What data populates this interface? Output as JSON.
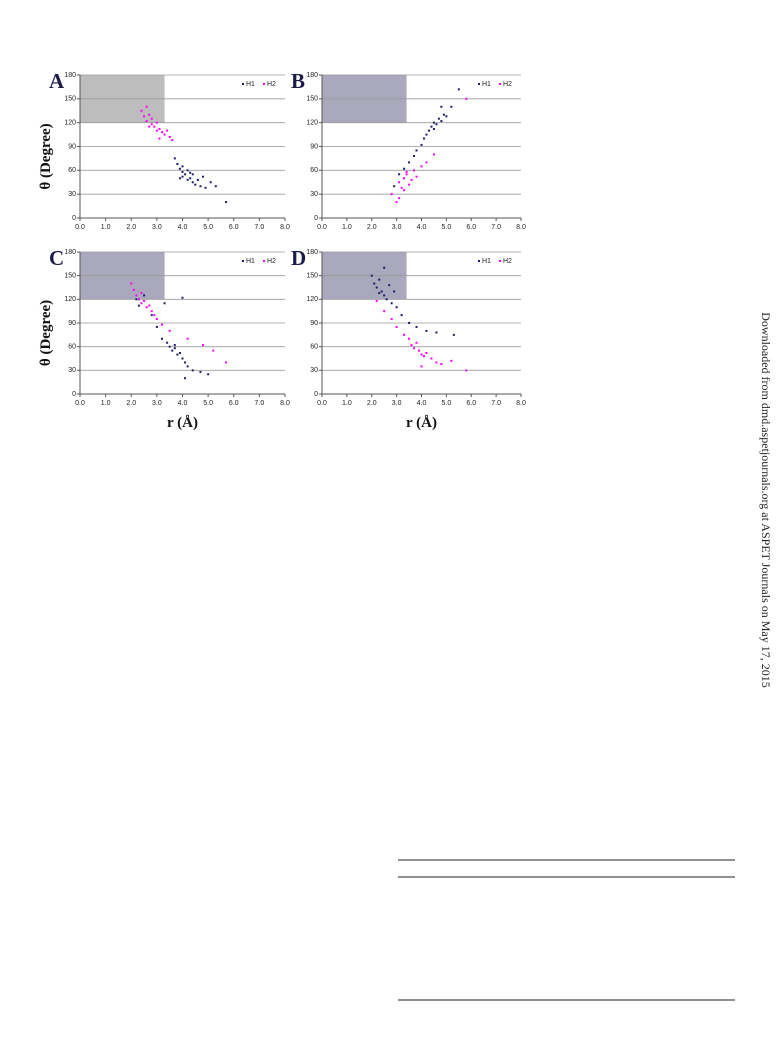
{
  "side_note": "Downloaded from dmd.aspetjournals.org at ASPET Journals on May 17, 2015",
  "chart_data": [
    {
      "type": "scatter",
      "panel": "A",
      "region_x": [
        0,
        3.3
      ],
      "region_y": [
        120,
        180
      ],
      "region_color": "#bdbdbd",
      "grid": true,
      "xlim": [
        0,
        8
      ],
      "ylim": [
        0,
        180
      ],
      "xticks": [
        {
          "value": 0,
          "label": "0.0"
        },
        {
          "value": 1,
          "label": "1.0"
        },
        {
          "value": 2,
          "label": "2.0"
        },
        {
          "value": 3,
          "label": "3.0"
        },
        {
          "value": 4,
          "label": "4.0"
        },
        {
          "value": 5,
          "label": "5.0"
        },
        {
          "value": 6,
          "label": "6.0"
        },
        {
          "value": 7,
          "label": "7.0"
        },
        {
          "value": 8,
          "label": "8.0"
        }
      ],
      "yticks": [
        0,
        30,
        60,
        90,
        120,
        150,
        180
      ],
      "y_label": "θ (Degree)",
      "series": [
        {
          "name": "H1",
          "color": "#1c1c6b",
          "x": [
            3.7,
            3.8,
            3.9,
            4.0,
            4.0,
            4.1,
            4.2,
            4.2,
            4.3,
            4.4,
            4.4,
            4.5,
            4.6,
            4.7,
            4.8,
            4.9,
            5.1,
            5.3,
            5.7,
            4.0,
            3.9,
            4.3
          ],
          "values": [
            75,
            68,
            62,
            58,
            52,
            55,
            48,
            60,
            50,
            45,
            55,
            42,
            48,
            40,
            52,
            38,
            45,
            40,
            20,
            65,
            50,
            57
          ]
        },
        {
          "name": "H2",
          "color": "#ff00ff",
          "x": [
            2.4,
            2.5,
            2.6,
            2.7,
            2.8,
            2.8,
            2.9,
            3.0,
            3.0,
            3.1,
            3.2,
            3.3,
            3.4,
            3.5,
            2.6,
            2.7,
            3.1,
            3.6
          ],
          "values": [
            135,
            128,
            122,
            130,
            118,
            125,
            115,
            120,
            110,
            112,
            108,
            105,
            110,
            102,
            140,
            115,
            100,
            98
          ]
        }
      ]
    },
    {
      "type": "scatter",
      "panel": "B",
      "region_x": [
        0,
        3.4
      ],
      "region_y": [
        120,
        180
      ],
      "region_color": "#a9a8bd",
      "grid": true,
      "xlim": [
        0,
        8
      ],
      "ylim": [
        0,
        180
      ],
      "xticks": [
        {
          "value": 0,
          "label": "0.0"
        },
        {
          "value": 1,
          "label": "1.0"
        },
        {
          "value": 2,
          "label": "2.0"
        },
        {
          "value": 3,
          "label": "3.0"
        },
        {
          "value": 4,
          "label": "4.0"
        },
        {
          "value": 5,
          "label": "5.0"
        },
        {
          "value": 6,
          "label": "6.0"
        },
        {
          "value": 7,
          "label": "7.0"
        },
        {
          "value": 8,
          "label": "8.0"
        }
      ],
      "yticks": [
        0,
        30,
        60,
        90,
        120,
        150,
        180
      ],
      "series": [
        {
          "name": "H1",
          "color": "#1c1c6b",
          "x": [
            2.9,
            3.1,
            3.3,
            3.5,
            3.7,
            3.8,
            4.0,
            4.1,
            4.2,
            4.3,
            4.4,
            4.5,
            4.6,
            4.7,
            4.8,
            4.9,
            5.0,
            5.2,
            5.5,
            4.5,
            4.8
          ],
          "values": [
            40,
            55,
            62,
            70,
            78,
            85,
            92,
            100,
            105,
            110,
            115,
            120,
            118,
            125,
            122,
            130,
            128,
            140,
            162,
            112,
            140
          ]
        },
        {
          "name": "H2",
          "color": "#ff00ff",
          "x": [
            2.8,
            3.0,
            3.1,
            3.2,
            3.3,
            3.3,
            3.4,
            3.5,
            3.6,
            3.7,
            3.8,
            4.0,
            4.2,
            3.1,
            3.4,
            5.8,
            4.5
          ],
          "values": [
            30,
            20,
            45,
            38,
            50,
            35,
            55,
            42,
            48,
            60,
            52,
            65,
            70,
            25,
            58,
            150,
            80
          ]
        }
      ]
    },
    {
      "type": "scatter",
      "panel": "C",
      "region_x": [
        0,
        3.3
      ],
      "region_y": [
        120,
        180
      ],
      "region_color": "#a9a8bd",
      "grid": true,
      "xlim": [
        0,
        8
      ],
      "ylim": [
        0,
        180
      ],
      "xticks": [
        {
          "value": 0,
          "label": "0.0"
        },
        {
          "value": 1,
          "label": "1.0"
        },
        {
          "value": 2,
          "label": "2.0"
        },
        {
          "value": 3,
          "label": "3.0"
        },
        {
          "value": 4,
          "label": "4.0"
        },
        {
          "value": 5,
          "label": "5.0"
        },
        {
          "value": 6,
          "label": "6.0"
        },
        {
          "value": 7,
          "label": "7.0"
        },
        {
          "value": 8,
          "label": "8.0"
        }
      ],
      "yticks": [
        0,
        30,
        60,
        90,
        120,
        150,
        180
      ],
      "y_label": "θ (Degree)",
      "x_label": "r (Å)",
      "series": [
        {
          "name": "H1",
          "color": "#1c1c6b",
          "x": [
            2.2,
            2.3,
            2.5,
            2.8,
            3.0,
            3.2,
            3.4,
            3.5,
            3.6,
            3.7,
            3.8,
            3.9,
            4.0,
            4.1,
            4.2,
            4.4,
            4.7,
            5.0,
            3.7,
            4.1,
            3.3,
            4.0
          ],
          "values": [
            120,
            112,
            125,
            100,
            85,
            70,
            65,
            60,
            55,
            58,
            50,
            52,
            45,
            40,
            35,
            30,
            28,
            25,
            62,
            20,
            115,
            122
          ]
        },
        {
          "name": "H2",
          "color": "#ff00ff",
          "x": [
            2.0,
            2.1,
            2.2,
            2.3,
            2.4,
            2.5,
            2.6,
            2.7,
            2.8,
            3.0,
            3.2,
            3.5,
            4.2,
            4.8,
            5.2,
            5.7,
            2.4,
            2.9
          ],
          "values": [
            140,
            132,
            125,
            120,
            115,
            118,
            110,
            112,
            105,
            95,
            88,
            80,
            70,
            62,
            55,
            40,
            128,
            100
          ]
        }
      ]
    },
    {
      "type": "scatter",
      "panel": "D",
      "region_x": [
        0,
        3.4
      ],
      "region_y": [
        120,
        180
      ],
      "region_color": "#a9a8bd",
      "grid": true,
      "xlim": [
        0,
        8
      ],
      "ylim": [
        0,
        180
      ],
      "xticks": [
        {
          "value": 0,
          "label": "0.0"
        },
        {
          "value": 1,
          "label": "1.0"
        },
        {
          "value": 2,
          "label": "2.0"
        },
        {
          "value": 3,
          "label": "3.0"
        },
        {
          "value": 4,
          "label": "4.0"
        },
        {
          "value": 5,
          "label": "5.0"
        },
        {
          "value": 6,
          "label": "6.0"
        },
        {
          "value": 7,
          "label": "7.0"
        },
        {
          "value": 8,
          "label": "8.0"
        }
      ],
      "yticks": [
        0,
        30,
        60,
        90,
        120,
        150,
        180
      ],
      "x_label": "r (Å)",
      "series": [
        {
          "name": "H1",
          "color": "#1c1c6b",
          "x": [
            2.0,
            2.1,
            2.2,
            2.3,
            2.4,
            2.5,
            2.5,
            2.6,
            2.7,
            2.8,
            3.0,
            3.2,
            3.5,
            3.8,
            4.2,
            4.6,
            5.3,
            2.3,
            2.9
          ],
          "values": [
            150,
            140,
            135,
            128,
            130,
            125,
            160,
            120,
            138,
            115,
            110,
            100,
            90,
            85,
            80,
            78,
            75,
            145,
            130
          ]
        },
        {
          "name": "H2",
          "color": "#ff00ff",
          "x": [
            2.2,
            2.5,
            2.8,
            3.0,
            3.3,
            3.5,
            3.6,
            3.7,
            3.8,
            3.9,
            4.0,
            4.1,
            4.2,
            4.4,
            4.6,
            4.8,
            5.2,
            5.8,
            4.0
          ],
          "values": [
            118,
            105,
            95,
            85,
            75,
            70,
            62,
            58,
            65,
            55,
            50,
            48,
            52,
            45,
            40,
            38,
            42,
            30,
            35
          ]
        }
      ]
    }
  ]
}
